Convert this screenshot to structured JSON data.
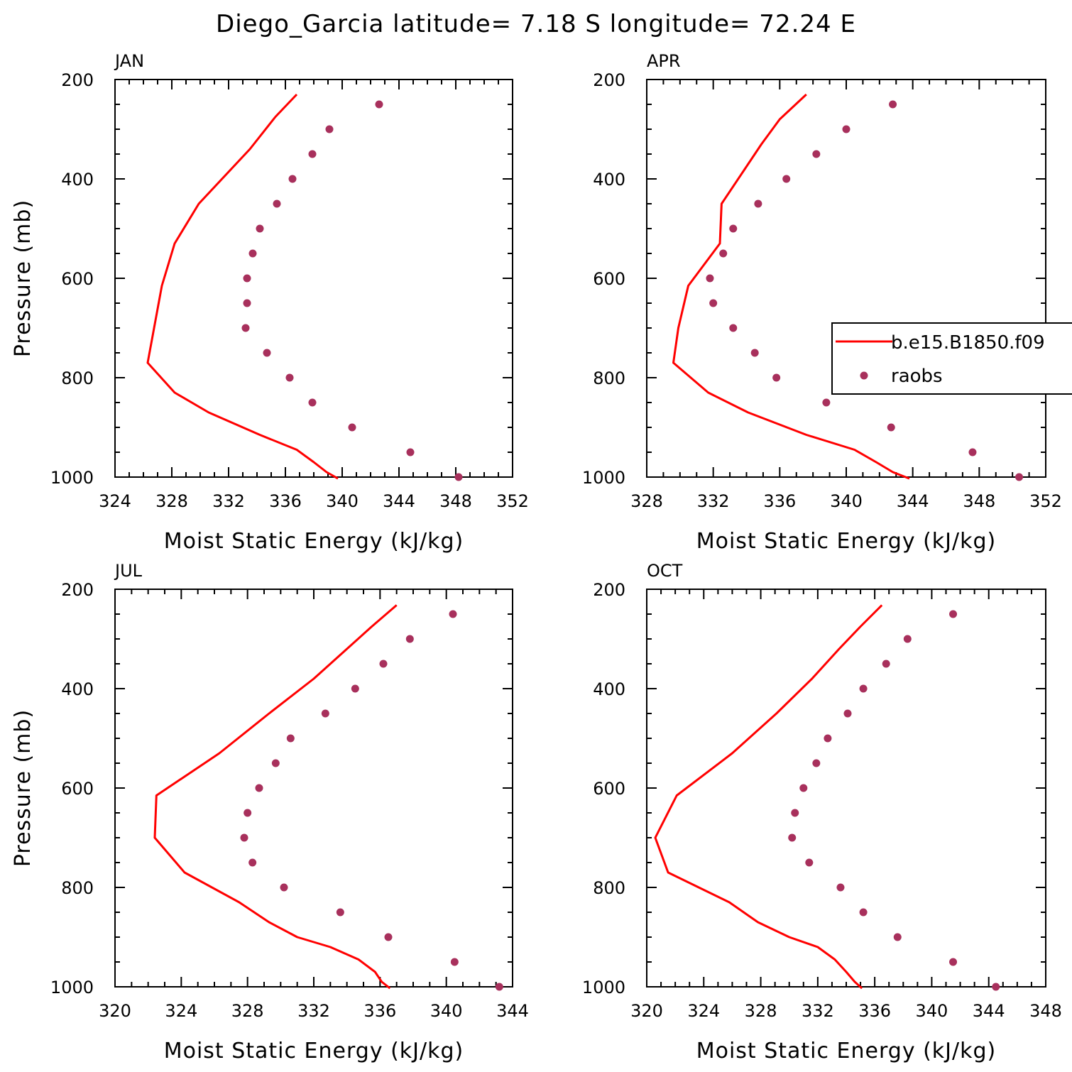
{
  "title": "Diego_Garcia  latitude= 7.18 S longitude= 72.24 E",
  "legend": {
    "model_label": "b.e15.B1850.f09",
    "obs_label": "raobs",
    "panel": "APR"
  },
  "colors": {
    "model": "#ff0000",
    "obs": "#a8305c"
  },
  "chart_data": [
    {
      "type": "line",
      "panel": "JAN",
      "xlabel": "Moist Static Energy (kJ/kg)",
      "ylabel": "Pressure (mb)",
      "xlim": [
        324,
        352
      ],
      "ylim": [
        1000,
        200
      ],
      "xticks": [
        324,
        328,
        332,
        336,
        340,
        344,
        348,
        352
      ],
      "yticks": [
        200,
        400,
        600,
        800,
        1000
      ],
      "series": [
        {
          "name": "b.e15.B1850.f09",
          "x": [
            336.8,
            335.3,
            333.5,
            329.9,
            328.2,
            327.3,
            326.3,
            328.2,
            330.6,
            334.2,
            336.8,
            338.0,
            338.9,
            339.7
          ],
          "y": [
            230,
            275,
            340,
            450,
            530,
            615,
            770,
            830,
            870,
            915,
            945,
            970,
            990,
            1003
          ]
        },
        {
          "name": "raobs",
          "x": [
            342.6,
            339.1,
            337.9,
            336.5,
            335.4,
            334.2,
            333.7,
            333.3,
            333.3,
            333.2,
            334.7,
            336.3,
            337.9,
            340.7,
            344.8,
            348.2
          ],
          "y": [
            250,
            300,
            350,
            400,
            450,
            500,
            550,
            600,
            650,
            700,
            750,
            800,
            850,
            900,
            950,
            1000
          ]
        }
      ]
    },
    {
      "type": "line",
      "panel": "APR",
      "xlabel": "Moist Static Energy (kJ/kg)",
      "ylabel": "",
      "xlim": [
        328,
        352
      ],
      "ylim": [
        1000,
        200
      ],
      "xticks": [
        328,
        332,
        336,
        340,
        344,
        348,
        352
      ],
      "yticks": [
        200,
        400,
        600,
        800,
        1000
      ],
      "series": [
        {
          "name": "b.e15.B1850.f09",
          "x": [
            337.6,
            336.0,
            334.9,
            333.9,
            332.5,
            332.4,
            330.5,
            329.9,
            329.6,
            331.7,
            334.1,
            337.6,
            340.5,
            341.8,
            342.8,
            343.8
          ],
          "y": [
            230,
            280,
            330,
            380,
            450,
            530,
            615,
            700,
            770,
            830,
            870,
            915,
            945,
            970,
            990,
            1003
          ]
        },
        {
          "name": "raobs",
          "x": [
            342.8,
            340.0,
            338.2,
            336.4,
            334.7,
            333.2,
            332.6,
            331.8,
            332.0,
            333.2,
            334.5,
            335.8,
            338.8,
            342.7,
            347.6,
            350.4
          ],
          "y": [
            250,
            300,
            350,
            400,
            450,
            500,
            550,
            600,
            650,
            700,
            750,
            800,
            850,
            900,
            950,
            1000
          ]
        }
      ]
    },
    {
      "type": "line",
      "panel": "JUL",
      "xlabel": "Moist Static Energy (kJ/kg)",
      "ylabel": "Pressure (mb)",
      "xlim": [
        320,
        344
      ],
      "ylim": [
        1000,
        200
      ],
      "xticks": [
        320,
        324,
        328,
        332,
        336,
        340,
        344
      ],
      "yticks": [
        200,
        400,
        600,
        800,
        1000
      ],
      "series": [
        {
          "name": "b.e15.B1850.f09",
          "x": [
            337.0,
            335.5,
            334.0,
            332.0,
            329.3,
            326.3,
            322.5,
            322.4,
            324.2,
            327.5,
            329.3,
            331.0,
            333.0,
            334.7,
            335.7,
            336.1,
            336.6
          ],
          "y": [
            232,
            275,
            320,
            380,
            450,
            530,
            615,
            700,
            770,
            830,
            870,
            900,
            920,
            945,
            970,
            990,
            1003
          ]
        },
        {
          "name": "raobs",
          "x": [
            340.4,
            337.8,
            336.2,
            334.5,
            332.7,
            330.6,
            329.7,
            328.7,
            328.0,
            327.8,
            328.3,
            330.2,
            333.6,
            336.5,
            340.5,
            343.2
          ],
          "y": [
            250,
            300,
            350,
            400,
            450,
            500,
            550,
            600,
            650,
            700,
            750,
            800,
            850,
            900,
            950,
            1000
          ]
        }
      ]
    },
    {
      "type": "line",
      "panel": "OCT",
      "xlabel": "Moist Static Energy (kJ/kg)",
      "ylabel": "",
      "xlim": [
        320,
        348
      ],
      "ylim": [
        1000,
        200
      ],
      "xticks": [
        320,
        324,
        328,
        332,
        336,
        340,
        344,
        348
      ],
      "yticks": [
        200,
        400,
        600,
        800,
        1000
      ],
      "series": [
        {
          "name": "b.e15.B1850.f09",
          "x": [
            336.5,
            335.0,
            333.5,
            331.6,
            329.1,
            326.0,
            322.1,
            320.6,
            321.5,
            325.8,
            327.8,
            330.0,
            332.0,
            333.2,
            334.0,
            334.6,
            335.1
          ],
          "y": [
            232,
            275,
            320,
            380,
            450,
            530,
            615,
            700,
            770,
            830,
            870,
            900,
            920,
            945,
            970,
            990,
            1003
          ]
        },
        {
          "name": "raobs",
          "x": [
            341.5,
            338.3,
            336.8,
            335.2,
            334.1,
            332.7,
            331.9,
            331.0,
            330.4,
            330.2,
            331.4,
            333.6,
            335.2,
            337.6,
            341.5,
            344.5
          ],
          "y": [
            250,
            300,
            350,
            400,
            450,
            500,
            550,
            600,
            650,
            700,
            750,
            800,
            850,
            900,
            950,
            1000
          ]
        }
      ]
    }
  ]
}
